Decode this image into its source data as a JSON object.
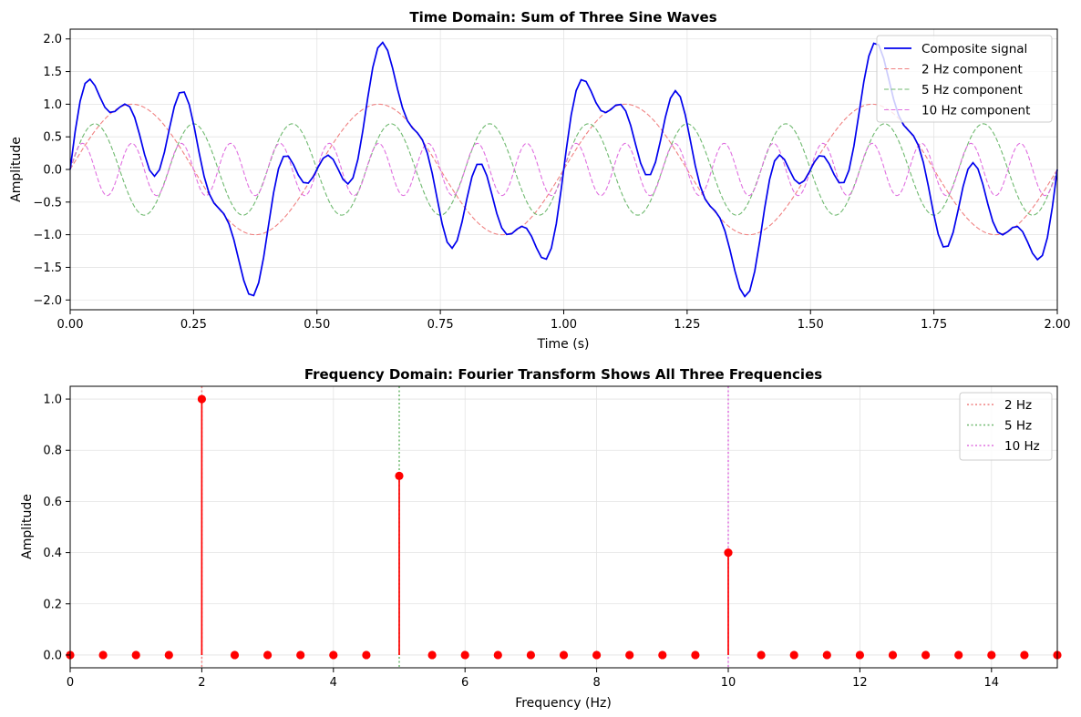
{
  "chart_data": [
    {
      "type": "line",
      "title": "Time Domain: Sum of Three Sine Waves",
      "xlabel": "Time (s)",
      "ylabel": "Amplitude",
      "xlim": [
        0,
        2
      ],
      "ylim": [
        -2.15,
        2.15
      ],
      "grid": true,
      "legend_position": "top-right",
      "x_ticks": [
        "0.00",
        "0.25",
        "0.50",
        "0.75",
        "1.00",
        "1.25",
        "1.50",
        "1.75",
        "2.00"
      ],
      "y_ticks": [
        "−2.0",
        "−1.5",
        "−1.0",
        "−0.5",
        "0.0",
        "0.5",
        "1.0",
        "1.5",
        "2.0"
      ],
      "sample_rate_points": 200,
      "series": [
        {
          "name": "Composite signal",
          "kind": "composite",
          "color": "#0000ee",
          "style": "solid",
          "components": [
            [
              2,
              1.0
            ],
            [
              5,
              0.7
            ],
            [
              10,
              0.4
            ]
          ]
        },
        {
          "name": "2 Hz component",
          "kind": "sine",
          "frequency": 2,
          "amplitude": 1.0,
          "color": "#f08080",
          "style": "dashed"
        },
        {
          "name": "5 Hz component",
          "kind": "sine",
          "frequency": 5,
          "amplitude": 0.7,
          "color": "#6fb96f",
          "style": "dashed"
        },
        {
          "name": "10 Hz component",
          "kind": "sine",
          "frequency": 10,
          "amplitude": 0.4,
          "color": "#e070e0",
          "style": "dashed"
        }
      ]
    },
    {
      "type": "stem",
      "title": "Frequency Domain: Fourier Transform Shows All Three Frequencies",
      "xlabel": "Frequency (Hz)",
      "ylabel": "Amplitude",
      "xlim": [
        0,
        15
      ],
      "ylim": [
        -0.05,
        1.05
      ],
      "grid": true,
      "legend_position": "top-right",
      "x_ticks": [
        "0",
        "2",
        "4",
        "6",
        "8",
        "10",
        "12",
        "14"
      ],
      "y_ticks": [
        "0.0",
        "0.2",
        "0.4",
        "0.6",
        "0.8",
        "1.0"
      ],
      "stem_color": "#ff0000",
      "x": [
        0,
        0.5,
        1,
        1.5,
        2,
        2.5,
        3,
        3.5,
        4,
        4.5,
        5,
        5.5,
        6,
        6.5,
        7,
        7.5,
        8,
        8.5,
        9,
        9.5,
        10,
        10.5,
        11,
        11.5,
        12,
        12.5,
        13,
        13.5,
        14,
        14.5,
        15
      ],
      "values": [
        0,
        0,
        0,
        0,
        1.0,
        0,
        0,
        0,
        0,
        0,
        0.7,
        0,
        0,
        0,
        0,
        0,
        0,
        0,
        0,
        0,
        0.4,
        0,
        0,
        0,
        0,
        0,
        0,
        0,
        0,
        0,
        0
      ],
      "markers": [
        {
          "name": "2 Hz",
          "x": 2,
          "color": "#f08080"
        },
        {
          "name": "5 Hz",
          "x": 5,
          "color": "#6fb96f"
        },
        {
          "name": "10 Hz",
          "x": 10,
          "color": "#e070e0"
        }
      ]
    }
  ]
}
